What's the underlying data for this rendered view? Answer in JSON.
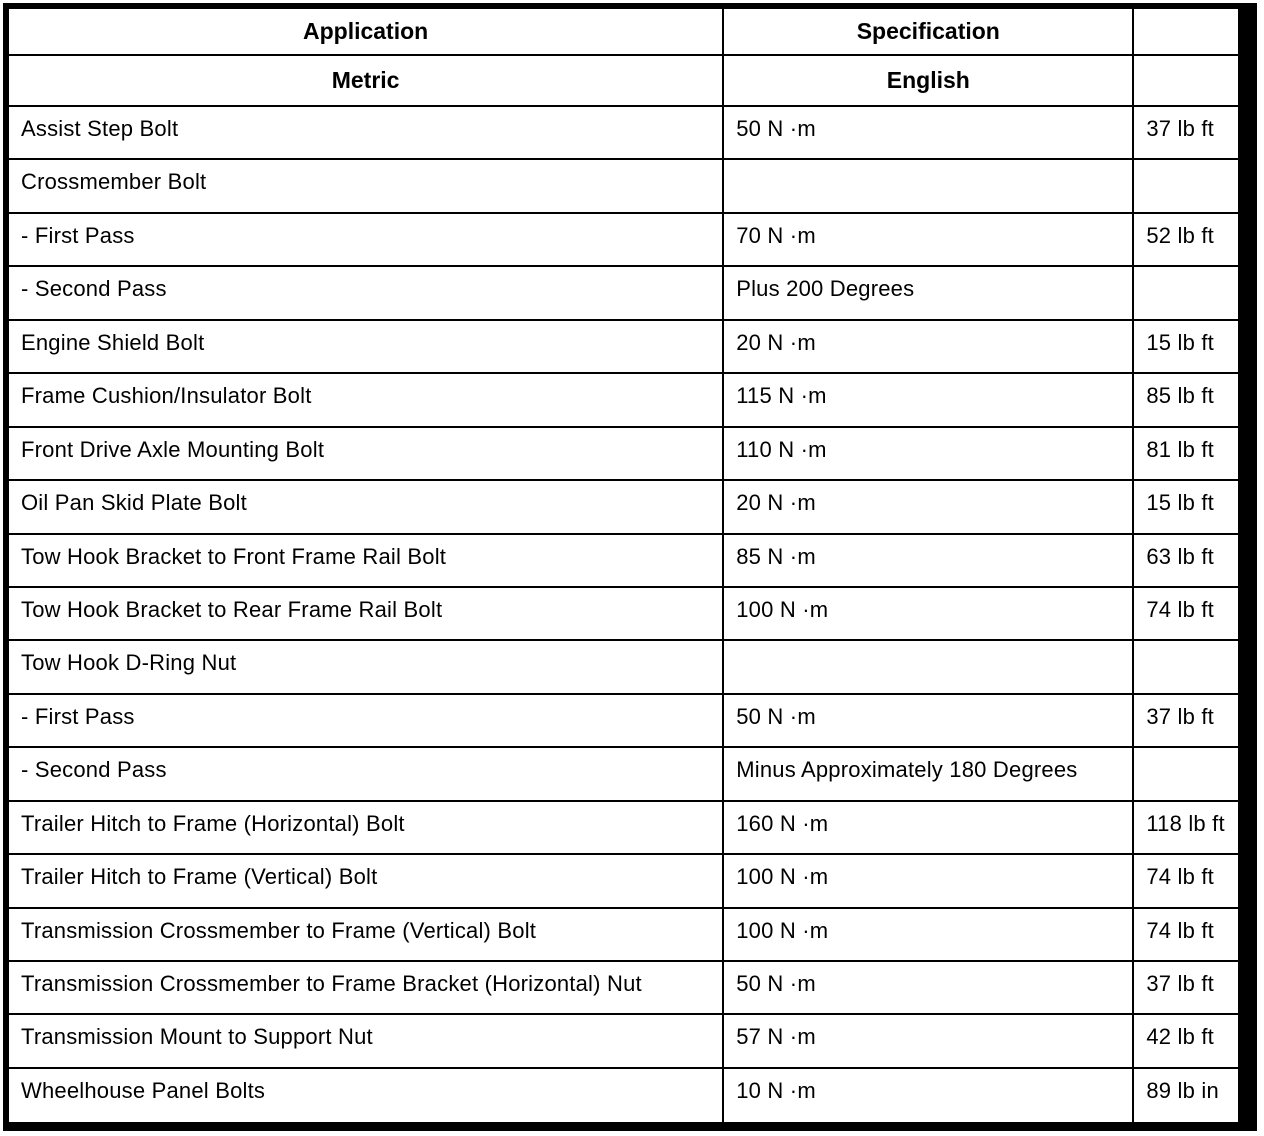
{
  "table": {
    "header_row1": [
      "Application",
      "Specification",
      ""
    ],
    "header_row2": [
      "Metric",
      "English",
      ""
    ],
    "rows": [
      {
        "application": "Assist Step Bolt",
        "metric": "50 N ·m",
        "english": "37 lb ft"
      },
      {
        "application": "Crossmember Bolt",
        "metric": "",
        "english": ""
      },
      {
        "application": "- First Pass",
        "metric": "70 N ·m",
        "english": "52 lb ft"
      },
      {
        "application": "- Second Pass",
        "metric": "Plus 200 Degrees",
        "english": ""
      },
      {
        "application": "Engine Shield Bolt",
        "metric": "20 N ·m",
        "english": "15 lb ft"
      },
      {
        "application": "Frame Cushion/Insulator Bolt",
        "metric": "115 N ·m",
        "english": "85 lb ft"
      },
      {
        "application": "Front Drive Axle Mounting Bolt",
        "metric": "110 N ·m",
        "english": "81 lb ft"
      },
      {
        "application": "Oil Pan Skid Plate Bolt",
        "metric": "20 N ·m",
        "english": "15 lb ft"
      },
      {
        "application": "Tow Hook Bracket to Front Frame Rail Bolt",
        "metric": "85 N ·m",
        "english": "63 lb ft"
      },
      {
        "application": "Tow Hook Bracket to Rear Frame Rail Bolt",
        "metric": "100 N ·m",
        "english": "74 lb ft"
      },
      {
        "application": "Tow Hook D-Ring Nut",
        "metric": "",
        "english": ""
      },
      {
        "application": "- First Pass",
        "metric": "50 N ·m",
        "english": "37 lb ft"
      },
      {
        "application": "- Second Pass",
        "metric": "Minus Approximately 180 Degrees",
        "english": ""
      },
      {
        "application": "Trailer Hitch to Frame (Horizontal) Bolt",
        "metric": "160 N ·m",
        "english": "118 lb ft"
      },
      {
        "application": "Trailer Hitch to Frame (Vertical) Bolt",
        "metric": "100 N ·m",
        "english": "74 lb ft"
      },
      {
        "application": "Transmission Crossmember to Frame (Vertical) Bolt",
        "metric": "100 N ·m",
        "english": "74 lb ft"
      },
      {
        "application": "Transmission Crossmember to Frame Bracket (Horizontal) Nut",
        "metric": "50 N ·m",
        "english": "37 lb ft"
      },
      {
        "application": "Transmission Mount to Support Nut",
        "metric": "57 N ·m",
        "english": "42 lb ft"
      },
      {
        "application": "Wheelhouse Panel Bolts",
        "metric": "10 N ·m",
        "english": "89 lb in"
      }
    ]
  }
}
